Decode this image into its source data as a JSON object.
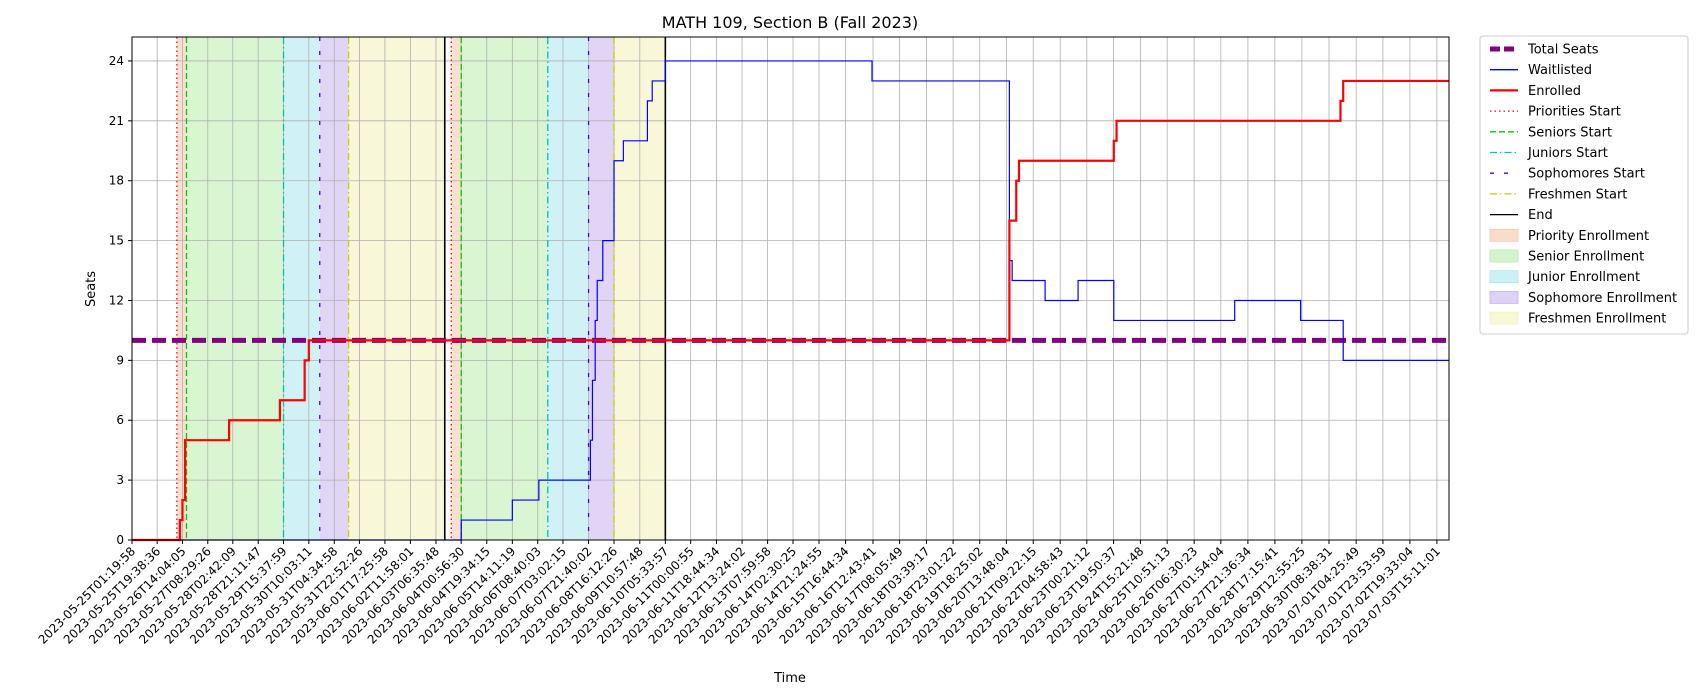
{
  "chart_data": {
    "type": "line",
    "title": "MATH 109, Section B (Fall 2023)",
    "xlabel": "Time",
    "ylabel": "Seats",
    "ylim": [
      0,
      25.2
    ],
    "xlim": [
      "2023-05-25T01:19:58",
      "2023-07-04T00:00:00"
    ],
    "grid": true,
    "legend_position": "outside-right-top",
    "y_ticks": [
      0,
      3,
      6,
      9,
      12,
      15,
      18,
      21,
      24
    ],
    "x_ticks": [
      "2023-05-25T01:19:58",
      "2023-05-25T19:38:36",
      "2023-05-26T14:04:05",
      "2023-05-27T08:29:26",
      "2023-05-28T02:42:09",
      "2023-05-28T21:11:47",
      "2023-05-29T15:37:59",
      "2023-05-30T10:03:11",
      "2023-05-31T04:34:58",
      "2023-05-31T22:52:26",
      "2023-06-01T17:25:58",
      "2023-06-02T11:58:01",
      "2023-06-03T06:35:48",
      "2023-06-04T00:56:30",
      "2023-06-04T19:34:15",
      "2023-06-05T14:11:19",
      "2023-06-06T08:40:03",
      "2023-06-07T03:02:15",
      "2023-06-07T21:40:02",
      "2023-06-08T16:12:26",
      "2023-06-09T10:57:48",
      "2023-06-10T05:33:57",
      "2023-06-11T00:00:55",
      "2023-06-11T18:44:34",
      "2023-06-12T13:24:02",
      "2023-06-13T07:59:58",
      "2023-06-14T02:30:25",
      "2023-06-14T21:24:55",
      "2023-06-15T16:44:34",
      "2023-06-16T12:43:41",
      "2023-06-17T08:05:49",
      "2023-06-18T03:39:17",
      "2023-06-18T23:01:22",
      "2023-06-19T18:25:02",
      "2023-06-20T13:48:04",
      "2023-06-21T09:22:15",
      "2023-06-22T04:58:43",
      "2023-06-23T00:21:12",
      "2023-06-23T19:50:37",
      "2023-06-24T15:21:48",
      "2023-06-25T10:51:13",
      "2023-06-26T06:30:23",
      "2023-06-27T01:54:04",
      "2023-06-27T21:36:34",
      "2023-06-28T17:15:41",
      "2023-06-29T12:55:25",
      "2023-06-30T08:38:31",
      "2023-07-01T04:25:49",
      "2023-07-01T23:53:59",
      "2023-07-02T19:33:04",
      "2023-07-03T15:11:01"
    ],
    "series": [
      {
        "name": "Total Seats",
        "color": "#800080",
        "style": "dashed-thick",
        "points": [
          [
            "2023-05-25T01:19:58",
            10
          ],
          [
            "2023-07-04T00:00:00",
            10
          ]
        ]
      },
      {
        "name": "Waitlisted",
        "color": "#0000ff",
        "style": "step",
        "points": [
          [
            "2023-05-25T01:19:58",
            0
          ],
          [
            "2023-06-04T00:56:30",
            0
          ],
          [
            "2023-06-04T01:00:00",
            1
          ],
          [
            "2023-06-05T14:11:19",
            2
          ],
          [
            "2023-06-06T09:30:00",
            3
          ],
          [
            "2023-06-07T21:40:02",
            3
          ],
          [
            "2023-06-07T23:00:00",
            5
          ],
          [
            "2023-06-08T00:30:00",
            8
          ],
          [
            "2023-06-08T02:30:00",
            11
          ],
          [
            "2023-06-08T04:00:00",
            13
          ],
          [
            "2023-06-08T08:00:00",
            15
          ],
          [
            "2023-06-08T16:12:26",
            19
          ],
          [
            "2023-06-08T23:00:00",
            20
          ],
          [
            "2023-06-09T16:30:00",
            22
          ],
          [
            "2023-06-09T20:00:00",
            23
          ],
          [
            "2023-06-10T05:33:57",
            24
          ],
          [
            "2023-06-16T12:00:00",
            23
          ],
          [
            "2023-06-20T16:00:00",
            14
          ],
          [
            "2023-06-20T18:00:00",
            13
          ],
          [
            "2023-06-21T18:00:00",
            12
          ],
          [
            "2023-06-22T18:00:00",
            13
          ],
          [
            "2023-06-23T20:00:00",
            11
          ],
          [
            "2023-06-27T12:00:00",
            12
          ],
          [
            "2023-06-29T12:00:00",
            11
          ],
          [
            "2023-06-30T19:00:00",
            9
          ],
          [
            "2023-07-04T00:00:00",
            9
          ]
        ]
      },
      {
        "name": "Enrolled",
        "color": "#ff0000",
        "style": "step-thick",
        "points": [
          [
            "2023-05-25T01:19:58",
            0
          ],
          [
            "2023-05-26T12:00:00",
            0
          ],
          [
            "2023-05-26T12:10:00",
            1
          ],
          [
            "2023-05-26T14:04:05",
            2
          ],
          [
            "2023-05-26T16:00:00",
            5
          ],
          [
            "2023-05-28T00:00:00",
            6
          ],
          [
            "2023-05-29T13:00:00",
            7
          ],
          [
            "2023-05-30T07:00:00",
            9
          ],
          [
            "2023-05-30T10:03:11",
            10
          ],
          [
            "2023-06-20T16:00:00",
            16
          ],
          [
            "2023-06-20T21:00:00",
            18
          ],
          [
            "2023-06-20T23:00:00",
            19
          ],
          [
            "2023-06-23T20:00:00",
            20
          ],
          [
            "2023-06-23T22:00:00",
            21
          ],
          [
            "2023-06-30T17:00:00",
            22
          ],
          [
            "2023-06-30T19:00:00",
            23
          ],
          [
            "2023-07-04T00:00:00",
            23
          ]
        ]
      }
    ],
    "vertical_lines": [
      {
        "name": "Priorities Start",
        "color": "#ff0000",
        "style": "dotted",
        "times": [
          "2023-05-26T10:00:00",
          "2023-06-03T17:45:00"
        ]
      },
      {
        "name": "Seniors Start",
        "color": "#00cc00",
        "style": "dashed",
        "times": [
          "2023-05-26T17:00:00",
          "2023-06-04T01:00:00"
        ]
      },
      {
        "name": "Juniors Start",
        "color": "#00bfbf",
        "style": "dashdot",
        "times": [
          "2023-05-29T15:37:59",
          "2023-06-06T16:00:00"
        ]
      },
      {
        "name": "Sophomores Start",
        "color": "#5500cc",
        "style": "sparse-dash",
        "times": [
          "2023-05-30T18:00:00",
          "2023-06-07T21:40:02"
        ]
      },
      {
        "name": "Freshmen Start",
        "color": "#cccc00",
        "style": "dashdot",
        "times": [
          "2023-05-31T15:00:00",
          "2023-06-08T16:12:26"
        ]
      },
      {
        "name": "End",
        "color": "#000000",
        "style": "solid",
        "times": [
          "2023-06-03T13:00:00",
          "2023-06-10T05:33:57"
        ]
      }
    ],
    "shaded_regions": [
      {
        "name": "Priority Enrollment",
        "color": "#f4c7a8",
        "ranges": [
          [
            "2023-05-26T10:00:00",
            "2023-05-26T17:00:00"
          ],
          [
            "2023-06-03T17:45:00",
            "2023-06-04T01:00:00"
          ]
        ]
      },
      {
        "name": "Senior Enrollment",
        "color": "#b9ecac",
        "ranges": [
          [
            "2023-05-26T17:00:00",
            "2023-05-29T15:37:59"
          ],
          [
            "2023-06-04T01:00:00",
            "2023-06-06T16:00:00"
          ]
        ]
      },
      {
        "name": "Junior Enrollment",
        "color": "#a9e7ee",
        "ranges": [
          [
            "2023-05-29T15:37:59",
            "2023-05-30T18:00:00"
          ],
          [
            "2023-06-06T16:00:00",
            "2023-06-07T21:40:02"
          ]
        ]
      },
      {
        "name": "Sophomore Enrollment",
        "color": "#c6b2ec",
        "ranges": [
          [
            "2023-05-30T18:00:00",
            "2023-05-31T15:00:00"
          ],
          [
            "2023-06-07T21:40:02",
            "2023-06-08T16:12:26"
          ]
        ]
      },
      {
        "name": "Freshmen Enrollment",
        "color": "#f2f2b8",
        "ranges": [
          [
            "2023-05-31T15:00:00",
            "2023-06-03T13:00:00"
          ],
          [
            "2023-06-08T16:12:26",
            "2023-06-10T05:33:57"
          ]
        ]
      }
    ],
    "legend": [
      {
        "label": "Total Seats",
        "kind": "line",
        "color": "#800080",
        "dash": "dashed-thick"
      },
      {
        "label": "Waitlisted",
        "kind": "line",
        "color": "#0000ff",
        "dash": "solid"
      },
      {
        "label": "Enrolled",
        "kind": "line",
        "color": "#ff0000",
        "dash": "solid-thick"
      },
      {
        "label": "Priorities Start",
        "kind": "line",
        "color": "#ff0000",
        "dash": "dotted"
      },
      {
        "label": "Seniors Start",
        "kind": "line",
        "color": "#00cc00",
        "dash": "dashed"
      },
      {
        "label": "Juniors Start",
        "kind": "line",
        "color": "#00bfbf",
        "dash": "dashdot"
      },
      {
        "label": "Sophomores Start",
        "kind": "line",
        "color": "#5500cc",
        "dash": "sparse-dash"
      },
      {
        "label": "Freshmen Start",
        "kind": "line",
        "color": "#cccc00",
        "dash": "dashdot"
      },
      {
        "label": "End",
        "kind": "line",
        "color": "#000000",
        "dash": "solid"
      },
      {
        "label": "Priority Enrollment",
        "kind": "patch",
        "color": "#f4c7a8"
      },
      {
        "label": "Senior Enrollment",
        "kind": "patch",
        "color": "#b9ecac"
      },
      {
        "label": "Junior Enrollment",
        "kind": "patch",
        "color": "#a9e7ee"
      },
      {
        "label": "Sophomore Enrollment",
        "kind": "patch",
        "color": "#c6b2ec"
      },
      {
        "label": "Freshmen Enrollment",
        "kind": "patch",
        "color": "#f2f2b8"
      }
    ]
  }
}
